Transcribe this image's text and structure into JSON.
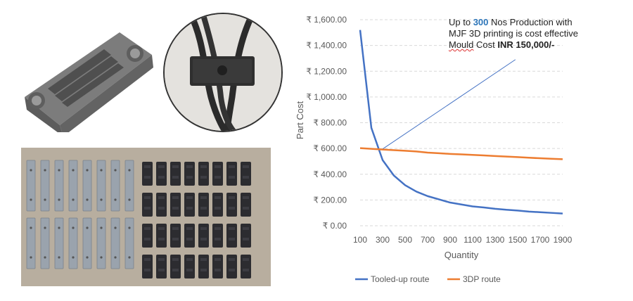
{
  "annotation": {
    "line1_prefix": "Up to ",
    "line1_qty": "300",
    "line1_suffix": " Nos Production with",
    "line2": "MJF 3D printing is cost effective",
    "line3_word": "Mould",
    "line3_mid": " Cost ",
    "line3_value": "INR 150,000/-"
  },
  "colors": {
    "tooled": "#4472c4",
    "printed": "#ed7d31",
    "grid": "#d9d9d9",
    "trend": "#4472c4",
    "highlight": "#2b74b8"
  },
  "chart_data": {
    "type": "line",
    "title": "",
    "xlabel": "Quantity",
    "ylabel": "Part Cost",
    "x": [
      100,
      200,
      300,
      400,
      500,
      600,
      700,
      800,
      900,
      1000,
      1100,
      1200,
      1300,
      1400,
      1500,
      1600,
      1700,
      1800,
      1900
    ],
    "x_tick_labels": [
      "100",
      "300",
      "500",
      "700",
      "900",
      "1100",
      "1300",
      "1500",
      "1700",
      "1900"
    ],
    "y_tick_labels": [
      "₹ 0.00",
      "₹ 200.00",
      "₹ 400.00",
      "₹ 600.00",
      "₹ 800.00",
      "₹ 1,000.00",
      "₹ 1,200.00",
      "₹ 1,400.00",
      "₹ 1,600.00"
    ],
    "ylim": [
      0,
      1600
    ],
    "grid": true,
    "legend_position": "bottom",
    "series": [
      {
        "name": "Tooled-up route",
        "values": [
          1520,
          760,
          510,
          390,
          315,
          265,
          230,
          205,
          180,
          165,
          150,
          142,
          132,
          124,
          118,
          110,
          105,
          100,
          95
        ]
      },
      {
        "name": "3DP route",
        "values": [
          603,
          597,
          592,
          587,
          582,
          577,
          568,
          563,
          558,
          554,
          550,
          546,
          541,
          537,
          533,
          528,
          524,
          520,
          517
        ]
      }
    ],
    "trend_line": {
      "x": [
        290,
        1480
      ],
      "y": [
        590,
        1290
      ]
    }
  }
}
